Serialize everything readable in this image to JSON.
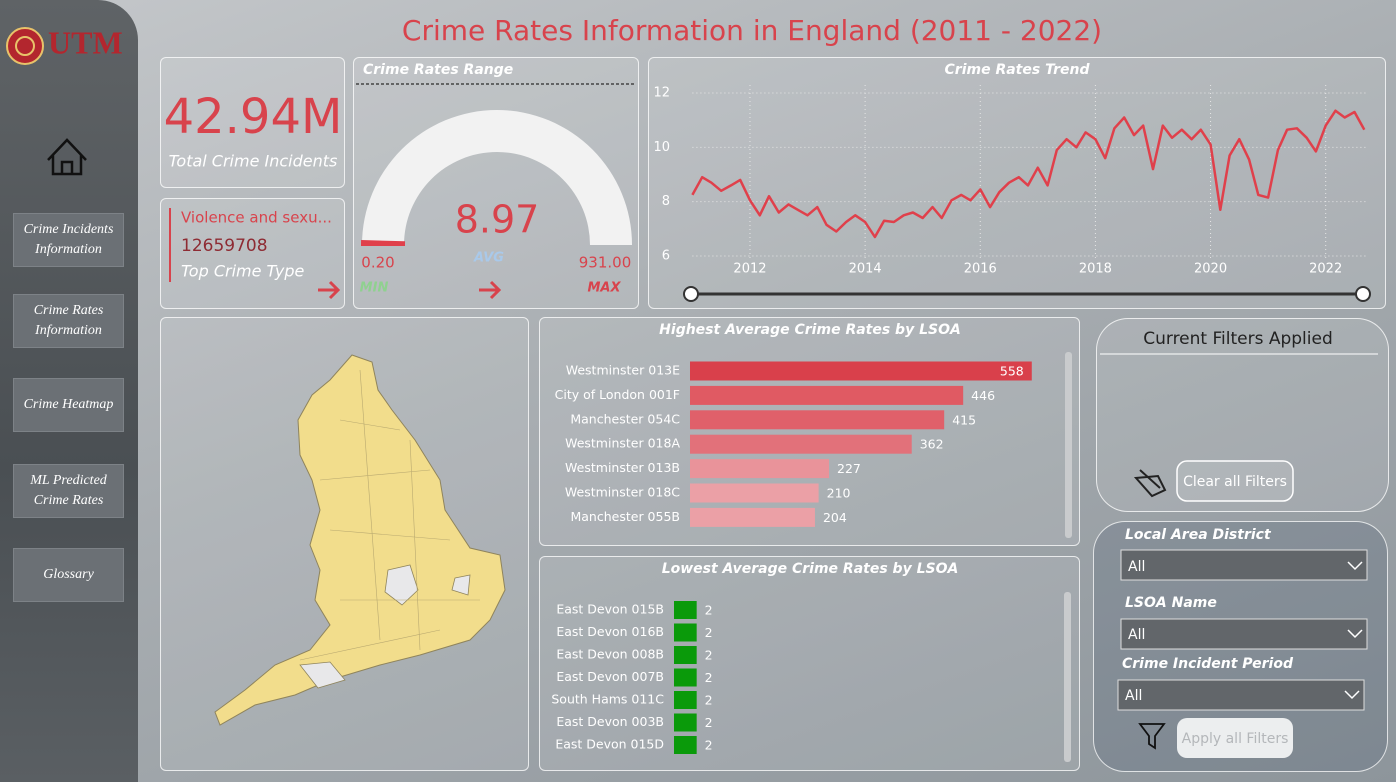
{
  "logo": "UTM",
  "title": "Crime Rates Information in England (2011 - 2022)",
  "nav": [
    "Crime Incidents Information",
    "Crime Rates Information",
    "Crime Heatmap",
    "ML Predicted Crime Rates",
    "Glossary"
  ],
  "cards": {
    "total": {
      "value": "42.94M",
      "label": "Total Crime Incidents"
    },
    "top_type": {
      "name": "Violence and sexu...",
      "count": 12659708,
      "label": "Top Crime Type"
    }
  },
  "chart_data": [
    {
      "type": "gauge",
      "title": "Crime Rates Range",
      "value": 8.97,
      "min": {
        "value": 0.2,
        "label": "0.20"
      },
      "max": {
        "value": 931,
        "label": "931.00"
      },
      "min_text": "MIN",
      "value_text": "AVG",
      "max_text": "MAX",
      "color": "#e0404b",
      "track_color": "#f2f2f2"
    },
    {
      "type": "line",
      "title": "Crime Rates Trend",
      "color": "#e0404b",
      "grid": true,
      "x": [
        2011.0,
        2011.17,
        2011.33,
        2011.5,
        2011.67,
        2011.83,
        2012.0,
        2012.17,
        2012.33,
        2012.5,
        2012.67,
        2012.83,
        2013.0,
        2013.17,
        2013.33,
        2013.5,
        2013.67,
        2013.83,
        2014.0,
        2014.17,
        2014.33,
        2014.5,
        2014.67,
        2014.83,
        2015.0,
        2015.17,
        2015.33,
        2015.5,
        2015.67,
        2015.83,
        2016.0,
        2016.17,
        2016.33,
        2016.5,
        2016.67,
        2016.83,
        2017.0,
        2017.17,
        2017.33,
        2017.5,
        2017.67,
        2017.83,
        2018.0,
        2018.17,
        2018.33,
        2018.5,
        2018.67,
        2018.83,
        2019.0,
        2019.17,
        2019.33,
        2019.5,
        2019.67,
        2019.83,
        2020.0,
        2020.17,
        2020.33,
        2020.5,
        2020.67,
        2020.83,
        2021.0,
        2021.17,
        2021.33,
        2021.5,
        2021.67,
        2021.83,
        2022.0,
        2022.17,
        2022.33,
        2022.5,
        2022.67
      ],
      "values": [
        8.25,
        8.9,
        8.7,
        8.4,
        8.6,
        8.8,
        8.05,
        7.5,
        8.2,
        7.6,
        7.9,
        7.7,
        7.5,
        7.8,
        7.15,
        6.9,
        7.25,
        7.5,
        7.25,
        6.7,
        7.3,
        7.25,
        7.5,
        7.6,
        7.4,
        7.8,
        7.4,
        8.05,
        8.25,
        8.05,
        8.45,
        7.8,
        8.35,
        8.7,
        8.9,
        8.6,
        9.25,
        8.6,
        9.9,
        10.3,
        10.0,
        10.55,
        10.3,
        9.6,
        10.7,
        11.1,
        10.45,
        10.8,
        9.2,
        10.8,
        10.35,
        10.65,
        10.3,
        10.65,
        10.1,
        7.7,
        9.7,
        10.3,
        9.55,
        8.25,
        8.15,
        9.9,
        10.65,
        10.7,
        10.35,
        9.85,
        10.8,
        11.35,
        11.1,
        11.3,
        10.65
      ],
      "xlim": [
        2011,
        2022.7
      ],
      "xticks": [
        2012,
        2014,
        2016,
        2018,
        2020,
        2022
      ],
      "ylim": [
        6,
        12
      ],
      "yticks": [
        6,
        8,
        10,
        12
      ]
    },
    {
      "type": "hbar",
      "title": "Highest Average Crime Rates by LSOA",
      "categories": [
        "Westminster 013E",
        "City of London 001F",
        "Manchester 054C",
        "Westminster 018A",
        "Westminster 013B",
        "Westminster 018C",
        "Manchester 055B"
      ],
      "values": [
        558,
        446,
        415,
        362,
        227,
        210,
        204
      ],
      "colors": [
        "#d9404b",
        "#e05a63",
        "#e0606a",
        "#e2717a",
        "#e9939a",
        "#eba0a6",
        "#eba0a6"
      ],
      "xlim": [
        0,
        560
      ]
    },
    {
      "type": "hbar",
      "title": "Lowest Average Crime Rates by LSOA",
      "categories": [
        "East Devon 015B",
        "East Devon 016B",
        "East Devon 008B",
        "East Devon 007B",
        "South Hams 011C",
        "East Devon 003B",
        "East Devon 015D"
      ],
      "values": [
        2,
        2,
        2,
        2,
        2,
        2,
        2
      ],
      "color": "#0a9a0a",
      "xlim": [
        0,
        30
      ]
    }
  ],
  "filters": {
    "heading": "Current Filters Applied",
    "clear": "Clear all Filters",
    "fields": [
      {
        "label": "Local Area District",
        "value": "All"
      },
      {
        "label": "LSOA Name",
        "value": "All"
      },
      {
        "label": "Crime Incident Period",
        "value": "All"
      }
    ],
    "apply": "Apply all Filters"
  }
}
